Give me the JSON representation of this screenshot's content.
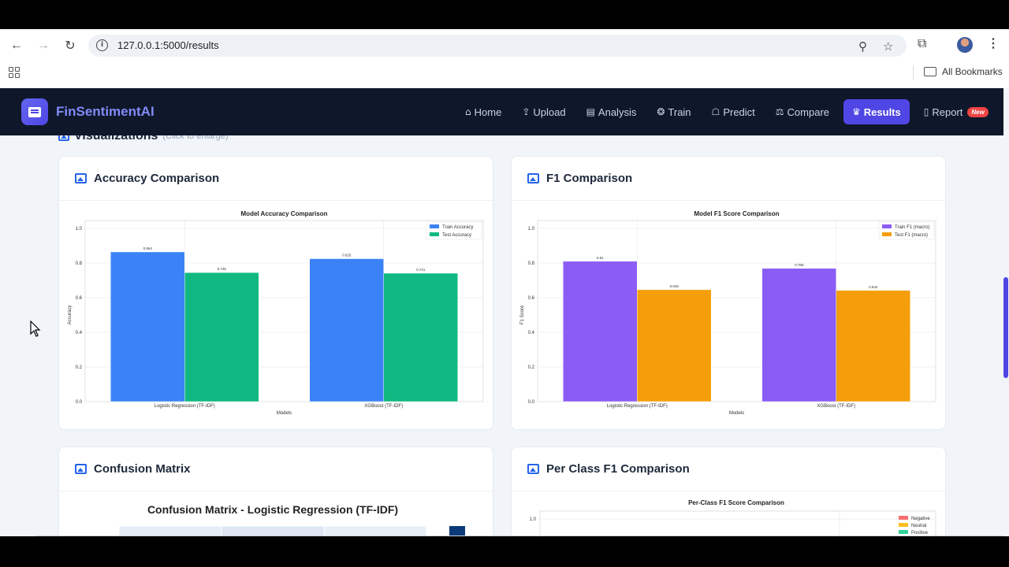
{
  "browser": {
    "url": "127.0.0.1:5000/results",
    "bookmarks_label": "All Bookmarks"
  },
  "navbar": {
    "brand": "FinSentimentAI",
    "items": [
      {
        "label": "Home",
        "icon": "home-icon",
        "glyph": "⌂"
      },
      {
        "label": "Upload",
        "icon": "upload-icon",
        "glyph": "⇪"
      },
      {
        "label": "Analysis",
        "icon": "chart-icon",
        "glyph": "▤"
      },
      {
        "label": "Train",
        "icon": "brain-icon",
        "glyph": "❂"
      },
      {
        "label": "Predict",
        "icon": "robot-icon",
        "glyph": "☖"
      },
      {
        "label": "Compare",
        "icon": "scale-icon",
        "glyph": "⚖"
      },
      {
        "label": "Results",
        "icon": "trophy-icon",
        "glyph": "♛",
        "active": true
      },
      {
        "label": "Report",
        "icon": "file-icon",
        "glyph": "▯",
        "badge": "New"
      }
    ],
    "accent": "#4f46e5",
    "background": "#0f172a"
  },
  "section": {
    "title": "Visualizations",
    "hint": "(Click to enlarge)"
  },
  "cards": {
    "accuracy": {
      "title": "Accuracy Comparison"
    },
    "f1": {
      "title": "F1 Comparison"
    },
    "confusion": {
      "title": "Confusion Matrix"
    },
    "per_class": {
      "title": "Per Class F1 Comparison"
    }
  },
  "chart_data": [
    {
      "id": "accuracy",
      "type": "bar",
      "title": "Model Accuracy Comparison",
      "xlabel": "Models",
      "ylabel": "Accuracy",
      "categories": [
        "Logistic Regression (TF-IDF)",
        "XGBoost (TF-IDF)"
      ],
      "series": [
        {
          "name": "Train Accuracy",
          "color": "#3b82f6",
          "values": [
            0.864,
            0.825
          ],
          "labels": [
            "0.864",
            "0.825"
          ]
        },
        {
          "name": "Test Accuracy",
          "color": "#10b981",
          "values": [
            0.745,
            0.741
          ],
          "labels": [
            "0.745",
            "0.741"
          ]
        }
      ],
      "yticks": [
        "0.0",
        "0.2",
        "0.4",
        "0.6",
        "0.8",
        "1.0"
      ],
      "ylim": [
        0,
        1.0
      ],
      "legend": "top-right"
    },
    {
      "id": "f1",
      "type": "bar",
      "title": "Model F1 Score Comparison",
      "xlabel": "Models",
      "ylabel": "F1 Score",
      "categories": [
        "Logistic Regression (TF-IDF)",
        "XGBoost (TF-IDF)"
      ],
      "series": [
        {
          "name": "Train F1 (macro)",
          "color": "#8b5cf6",
          "values": [
            0.81,
            0.769
          ],
          "labels": [
            "0.81",
            "0.769"
          ]
        },
        {
          "name": "Test F1 (macro)",
          "color": "#f59e0b",
          "values": [
            0.646,
            0.642
          ],
          "labels": [
            "0.646",
            "0.642"
          ]
        }
      ],
      "yticks": [
        "0.0",
        "0.2",
        "0.4",
        "0.6",
        "0.8",
        "1.0"
      ],
      "ylim": [
        0,
        1.0
      ],
      "legend": "top-right"
    },
    {
      "id": "confusion",
      "type": "heatmap",
      "title": "Confusion Matrix - Logistic Regression (TF-IDF)"
    },
    {
      "id": "per_class",
      "type": "bar",
      "title": "Per-Class F1 Score Comparison",
      "yticks": [
        "1.0"
      ],
      "series": [
        {
          "name": "Negative",
          "color": "#f87171"
        },
        {
          "name": "Neutral",
          "color": "#fbbf24"
        },
        {
          "name": "Positive",
          "color": "#34d399"
        }
      ],
      "legend": "top-right"
    }
  ]
}
